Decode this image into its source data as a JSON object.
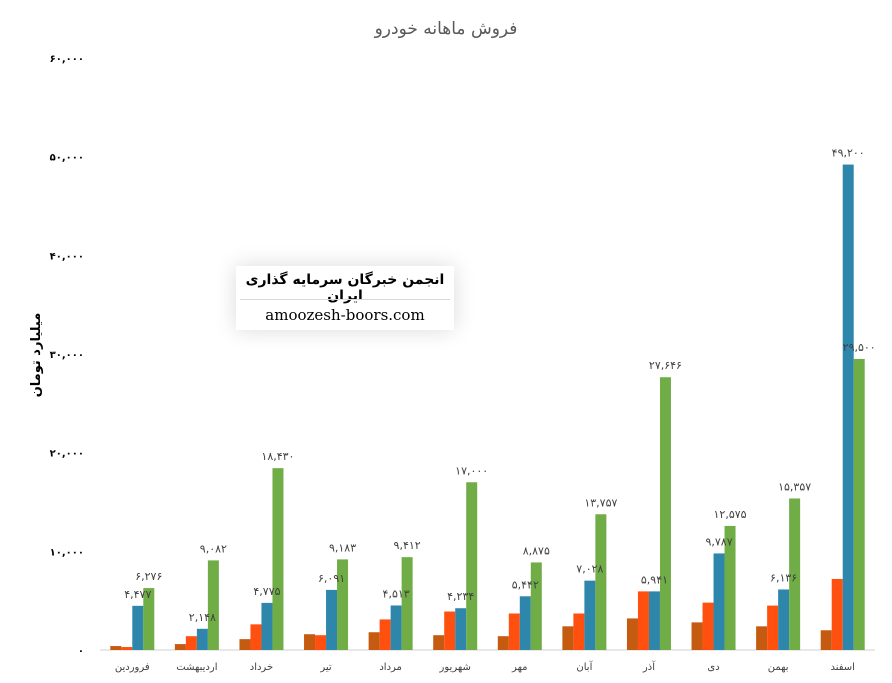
{
  "chart_data": {
    "type": "bar",
    "title": "فروش ماهانه خودرو",
    "ylabel": "میلیارد تومان",
    "xlabel": "",
    "ylim": [
      0,
      60000
    ],
    "yticks": [
      0,
      10000,
      20000,
      30000,
      40000,
      50000,
      60000
    ],
    "ytick_labels": [
      "۰",
      "۱۰,۰۰۰",
      "۲۰,۰۰۰",
      "۳۰,۰۰۰",
      "۴۰,۰۰۰",
      "۵۰,۰۰۰",
      "۶۰,۰۰۰"
    ],
    "grid": false,
    "categories": [
      "فروردین",
      "اردیبهشت",
      "خرداد",
      "تیر",
      "مرداد",
      "شهریور",
      "مهر",
      "آبان",
      "آذر",
      "دی",
      "بهمن",
      "اسفند"
    ],
    "colors": [
      "#C55A11",
      "#FF5010",
      "#2E86AB",
      "#70AD47"
    ],
    "series": [
      {
        "values": [
          400,
          600,
          1100,
          1600,
          1800,
          1500,
          1400,
          2400,
          3200,
          2800,
          2400,
          2000
        ]
      },
      {
        "values": [
          300,
          1400,
          2600,
          1500,
          3100,
          3900,
          3700,
          3700,
          5941,
          4800,
          4500,
          7200
        ]
      },
      {
        "values": [
          4477,
          2148,
          4775,
          6091,
          4513,
          4234,
          5442,
          7028,
          5941,
          9787,
          6136,
          49200
        ],
        "labels": [
          "۴,۴۷۷",
          "۲,۱۴۸",
          "۴,۷۷۵",
          "۶,۰۹۱",
          "۴,۵۱۳",
          "۴,۲۳۴",
          "۵,۴۴۲",
          "۷,۰۲۸",
          "۵,۹۴۱",
          "۹,۷۸۷",
          "۶,۱۳۶",
          "۴۹,۲۰۰"
        ]
      },
      {
        "values": [
          6276,
          9082,
          18430,
          9183,
          9412,
          17000,
          8875,
          13757,
          27646,
          12575,
          15357,
          29500
        ],
        "labels": [
          "۶,۲۷۶",
          "۹,۰۸۲",
          "۱۸,۴۳۰",
          "۹,۱۸۳",
          "۹,۴۱۲",
          "۱۷,۰۰۰",
          "۸,۸۷۵",
          "۱۳,۷۵۷",
          "۲۷,۶۴۶",
          "۱۲,۵۷۵",
          "۱۵,۳۵۷",
          "۲۹,۵۰۰"
        ]
      }
    ]
  },
  "watermark": {
    "title": "انجمن خبرگان سرمایه گذاری ایران",
    "url": "amoozesh-boors.com"
  }
}
